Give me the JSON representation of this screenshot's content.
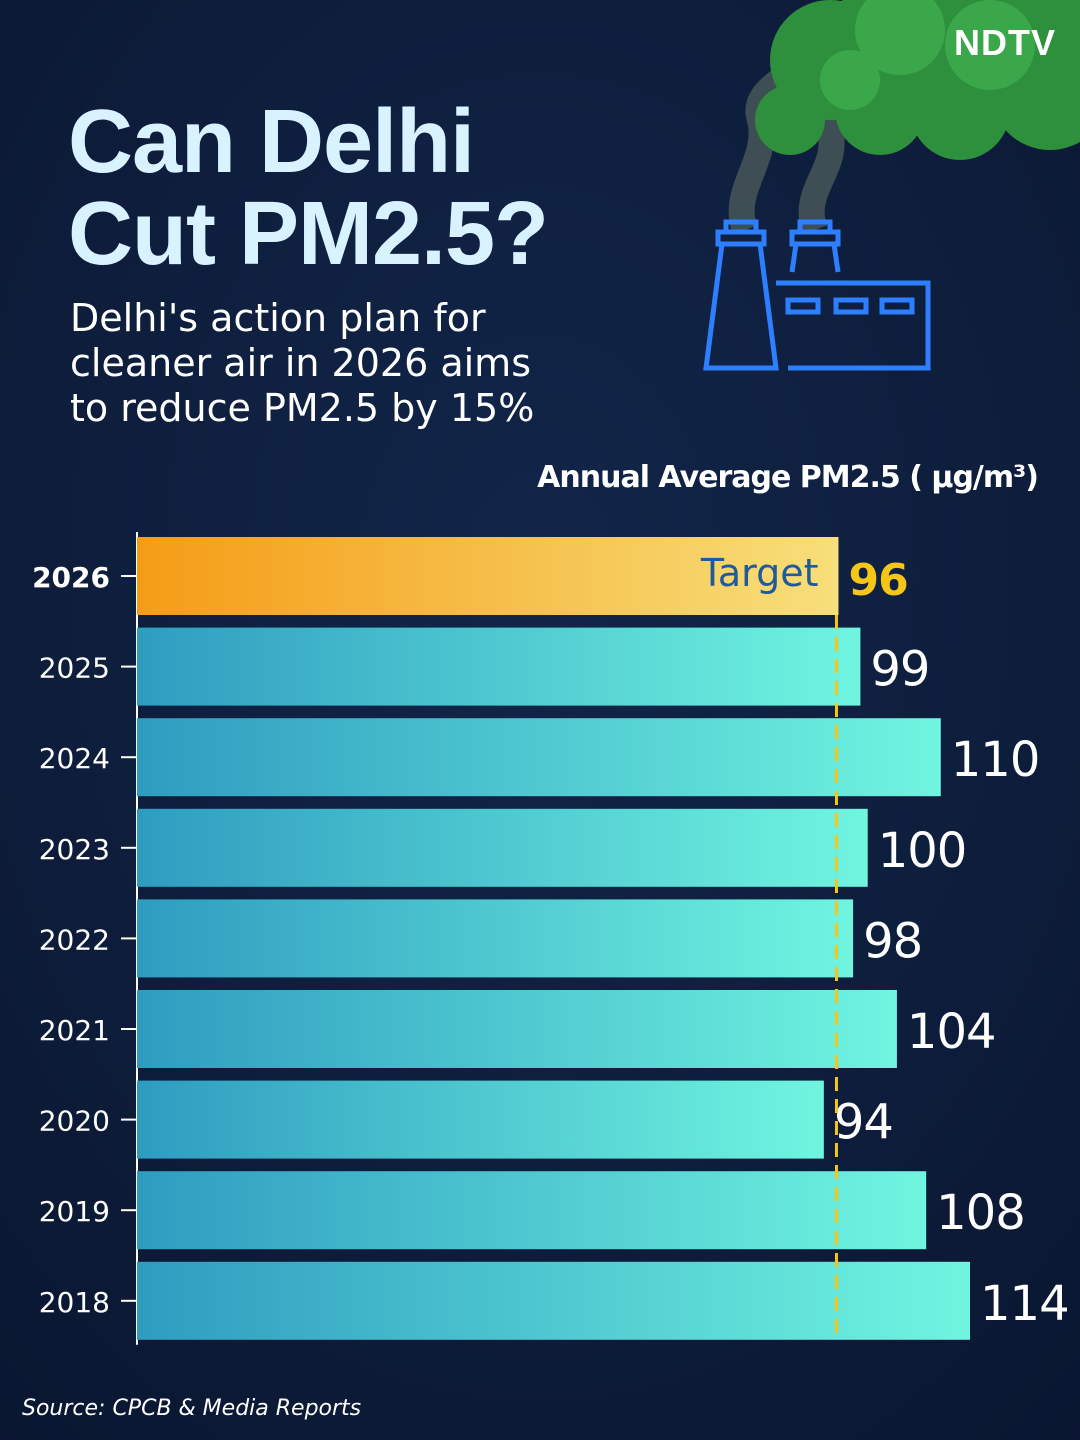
{
  "brand": "NDTV",
  "chart_data": {
    "type": "barh",
    "title": "Can Delhi\nCut PM2.5?",
    "subtitle": "Delhi's action plan for\ncleaner air in 2026 aims\nto reduce PM2.5 by 15%",
    "x_label": "Annual Average PM2.5 ( μg/m³)",
    "categories": [
      "2026",
      "2025",
      "2024",
      "2023",
      "2022",
      "2021",
      "2020",
      "2019",
      "2018"
    ],
    "values": [
      96,
      99,
      110,
      100,
      98,
      104,
      94,
      108,
      114
    ],
    "colors": [
      "#2e9cc0",
      "#70f5e0"
    ],
    "highlight_index": 0,
    "highlight_colors": [
      "#f59c16",
      "#f7df7a"
    ],
    "highlight_label_color": "#f5c518",
    "target_color": "#f5c518",
    "annotation": "Target",
    "xlim": [
      0,
      128
    ],
    "source": "Source: CPCB & Media Reports"
  }
}
